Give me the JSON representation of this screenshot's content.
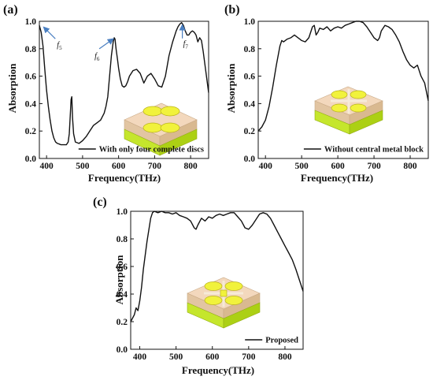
{
  "figure": {
    "annotation_color": "#4a7fc1",
    "series_color": "#111111"
  },
  "chart_data": [
    {
      "panel": "(a)",
      "type": "line",
      "xlabel": "Frequency(THz)",
      "ylabel": "Absorption",
      "xlim": [
        380,
        850
      ],
      "ylim": [
        0.0,
        1.0
      ],
      "xticks": [
        "400",
        "500",
        "600",
        "700",
        "800"
      ],
      "yticks": [
        "0.0",
        "0.2",
        "0.4",
        "0.6",
        "0.8",
        "1.0"
      ],
      "legend_position": "lower-right",
      "series": [
        {
          "name": "With only four complete discs",
          "x": [
            380,
            385,
            390,
            395,
            400,
            405,
            410,
            415,
            420,
            425,
            430,
            435,
            440,
            445,
            450,
            455,
            460,
            463,
            466,
            468,
            470,
            472,
            475,
            480,
            490,
            500,
            510,
            520,
            530,
            540,
            550,
            560,
            565,
            570,
            575,
            580,
            585,
            588,
            590,
            593,
            597,
            600,
            605,
            610,
            615,
            620,
            625,
            630,
            640,
            650,
            660,
            670,
            680,
            690,
            700,
            710,
            720,
            730,
            740,
            750,
            760,
            765,
            770,
            775,
            780,
            785,
            790,
            795,
            800,
            805,
            810,
            815,
            820,
            825,
            830,
            835,
            840,
            845,
            850
          ],
          "y": [
            0.97,
            0.92,
            0.82,
            0.65,
            0.5,
            0.38,
            0.28,
            0.2,
            0.15,
            0.12,
            0.11,
            0.105,
            0.1,
            0.1,
            0.1,
            0.1,
            0.12,
            0.18,
            0.32,
            0.43,
            0.45,
            0.3,
            0.18,
            0.12,
            0.11,
            0.13,
            0.16,
            0.2,
            0.24,
            0.26,
            0.28,
            0.33,
            0.38,
            0.45,
            0.6,
            0.75,
            0.85,
            0.88,
            0.87,
            0.8,
            0.72,
            0.66,
            0.58,
            0.53,
            0.52,
            0.53,
            0.56,
            0.6,
            0.64,
            0.65,
            0.62,
            0.55,
            0.6,
            0.62,
            0.58,
            0.53,
            0.52,
            0.6,
            0.75,
            0.85,
            0.93,
            0.96,
            0.98,
            0.99,
            0.97,
            0.93,
            0.9,
            0.9,
            0.92,
            0.93,
            0.92,
            0.9,
            0.85,
            0.88,
            0.86,
            0.78,
            0.68,
            0.58,
            0.48
          ]
        }
      ],
      "annotations": [
        {
          "label": "f",
          "sub": "5",
          "x": 385,
          "y": 0.97
        },
        {
          "label": "f",
          "sub": "6",
          "x": 590,
          "y": 0.88
        },
        {
          "label": "f",
          "sub": "7",
          "x": 777,
          "y": 0.99
        }
      ]
    },
    {
      "panel": "(b)",
      "type": "line",
      "xlabel": "Frequency(THz)",
      "ylabel": "Absorption",
      "xlim": [
        380,
        850
      ],
      "ylim": [
        0.0,
        1.0
      ],
      "xticks": [
        "400",
        "500",
        "600",
        "700",
        "800"
      ],
      "yticks": [
        "0.0",
        "0.2",
        "0.4",
        "0.6",
        "0.8",
        "1.0"
      ],
      "legend_position": "lower-right",
      "series": [
        {
          "name": "Without central metal block",
          "x": [
            380,
            390,
            400,
            410,
            420,
            430,
            440,
            445,
            450,
            460,
            470,
            480,
            490,
            500,
            510,
            520,
            530,
            535,
            540,
            545,
            550,
            560,
            570,
            580,
            590,
            600,
            610,
            620,
            630,
            640,
            650,
            660,
            670,
            680,
            690,
            700,
            710,
            715,
            720,
            730,
            740,
            750,
            760,
            770,
            780,
            790,
            800,
            810,
            820,
            830,
            840,
            850
          ],
          "y": [
            0.2,
            0.23,
            0.28,
            0.38,
            0.52,
            0.68,
            0.82,
            0.86,
            0.85,
            0.87,
            0.88,
            0.9,
            0.88,
            0.86,
            0.85,
            0.88,
            0.96,
            0.97,
            0.9,
            0.92,
            0.95,
            0.94,
            0.96,
            0.93,
            0.95,
            0.96,
            0.95,
            0.97,
            0.98,
            0.99,
            1.0,
            1.0,
            0.99,
            0.96,
            0.92,
            0.88,
            0.86,
            0.88,
            0.93,
            0.97,
            0.96,
            0.94,
            0.9,
            0.85,
            0.78,
            0.72,
            0.68,
            0.66,
            0.68,
            0.6,
            0.55,
            0.42
          ]
        }
      ]
    },
    {
      "panel": "(c)",
      "type": "line",
      "xlabel": "Frequency(THz)",
      "ylabel": "Absorption",
      "xlim": [
        375,
        850
      ],
      "ylim": [
        0.0,
        1.0
      ],
      "xticks": [
        "400",
        "500",
        "600",
        "700",
        "800"
      ],
      "yticks": [
        "0.0",
        "0.2",
        "0.4",
        "0.6",
        "0.8",
        "1.0"
      ],
      "legend_position": "lower-right",
      "series": [
        {
          "name": "Proposed",
          "x": [
            375,
            385,
            390,
            395,
            400,
            405,
            410,
            420,
            430,
            435,
            440,
            450,
            460,
            470,
            480,
            490,
            500,
            510,
            520,
            530,
            540,
            550,
            555,
            560,
            570,
            580,
            590,
            600,
            610,
            620,
            630,
            640,
            650,
            660,
            670,
            680,
            690,
            700,
            710,
            720,
            730,
            740,
            750,
            760,
            770,
            780,
            790,
            800,
            810,
            820,
            830,
            840,
            850
          ],
          "y": [
            0.2,
            0.25,
            0.3,
            0.28,
            0.35,
            0.45,
            0.58,
            0.78,
            0.95,
            0.99,
            1.0,
            0.99,
            1.0,
            0.99,
            0.99,
            0.98,
            0.99,
            0.97,
            0.96,
            0.95,
            0.93,
            0.88,
            0.87,
            0.9,
            0.95,
            0.93,
            0.96,
            0.95,
            0.97,
            0.98,
            0.97,
            0.98,
            0.99,
            0.99,
            0.96,
            0.93,
            0.88,
            0.87,
            0.9,
            0.94,
            0.98,
            0.99,
            0.98,
            0.95,
            0.9,
            0.85,
            0.8,
            0.75,
            0.7,
            0.65,
            0.58,
            0.5,
            0.42
          ]
        }
      ]
    }
  ]
}
